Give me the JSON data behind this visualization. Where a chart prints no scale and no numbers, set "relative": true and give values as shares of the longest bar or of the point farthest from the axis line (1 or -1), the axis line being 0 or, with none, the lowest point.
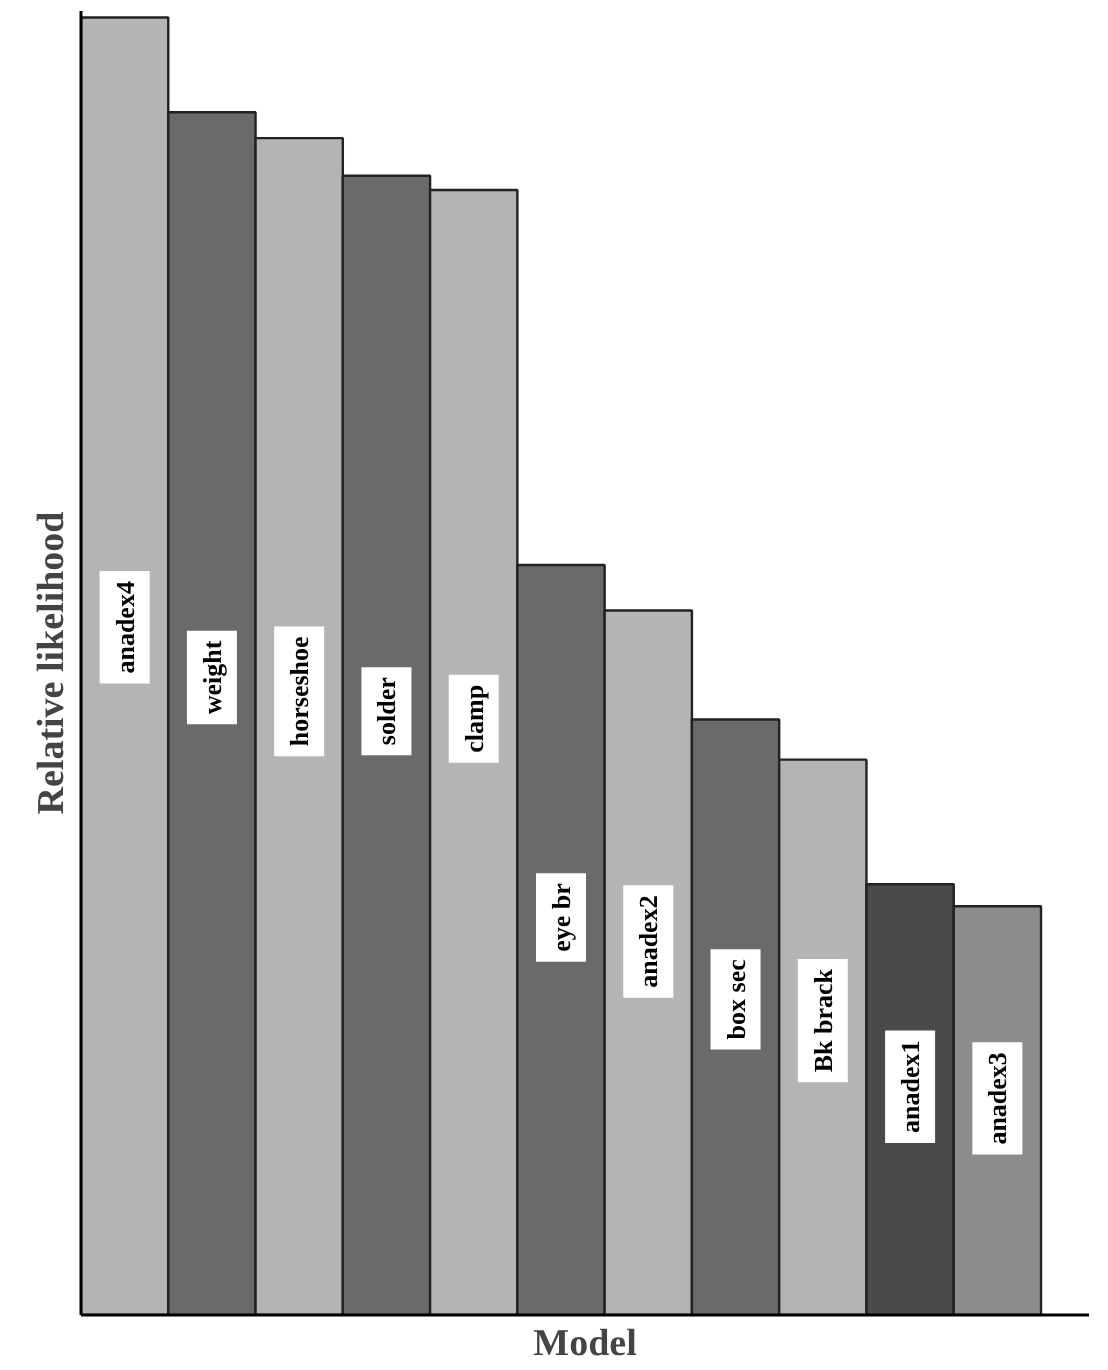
{
  "chart_data": {
    "type": "bar",
    "relative": true,
    "xlabel": "Model",
    "ylabel": "Relative likelihood",
    "categories": [
      "anadex4",
      "weight",
      "horseshoe",
      "solder",
      "clamp",
      "eye br",
      "anadex2",
      "box sec",
      "Bk brack",
      "anadex1",
      "anadex3"
    ],
    "values": [
      1,
      0.927,
      0.907,
      0.878,
      0.867,
      0.578,
      0.543,
      0.459,
      0.428,
      0.332,
      0.315
    ],
    "colors": [
      "#b4b4b4",
      "#6a6a6a",
      "#b4b4b4",
      "#6a6a6a",
      "#b4b4b4",
      "#6a6a6a",
      "#b4b4b4",
      "#6a6a6a",
      "#b4b4b4",
      "#4a4a4a",
      "#8c8c8c"
    ]
  }
}
